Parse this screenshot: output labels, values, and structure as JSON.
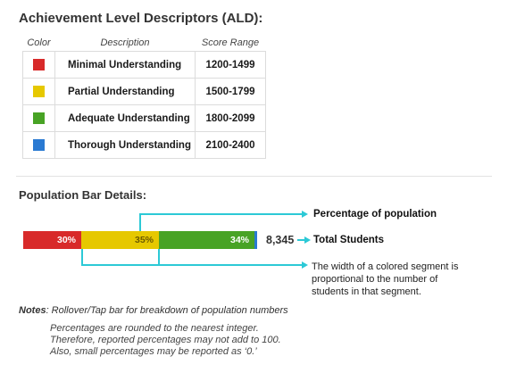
{
  "ald": {
    "title": "Achievement Level Descriptors (ALD):",
    "headers": {
      "color": "Color",
      "description": "Description",
      "range": "Score Range"
    },
    "rows": [
      {
        "color": "#d82a2a",
        "description": "Minimal Understanding",
        "range": "1200-1499"
      },
      {
        "color": "#e6c800",
        "description": "Partial Understanding",
        "range": "1500-1799"
      },
      {
        "color": "#48a325",
        "description": "Adequate Understanding",
        "range": "1800-2099"
      },
      {
        "color": "#2a7ad2",
        "description": "Thorough Understanding",
        "range": "2100-2400"
      }
    ]
  },
  "population": {
    "title": "Population Bar Details:",
    "segments": [
      {
        "label": "30%",
        "percent": 30,
        "color": "#d82a2a"
      },
      {
        "label": "35%",
        "percent": 35,
        "color": "#e6c800"
      },
      {
        "label": "34%",
        "percent": 34,
        "color": "#48a325"
      },
      {
        "label": "",
        "percent": 1,
        "color": "#2a7ad2"
      }
    ],
    "total_value": "8,345",
    "callout_percentage": "Percentage of population",
    "callout_total": "Total Students",
    "callout_width": "The width of a colored segment is proportional to the number of students in that segment."
  },
  "notes": {
    "label": "Notes",
    "text": ": Rollover/Tap bar for breakdown of population numbers",
    "lines": [
      "Percentages are rounded to the nearest integer.",
      "Therefore, reported percentages may not add to 100.",
      "Also, small percentages may be reported as ‘0.’"
    ]
  },
  "colors": {
    "connector": "#2cc9d6"
  }
}
